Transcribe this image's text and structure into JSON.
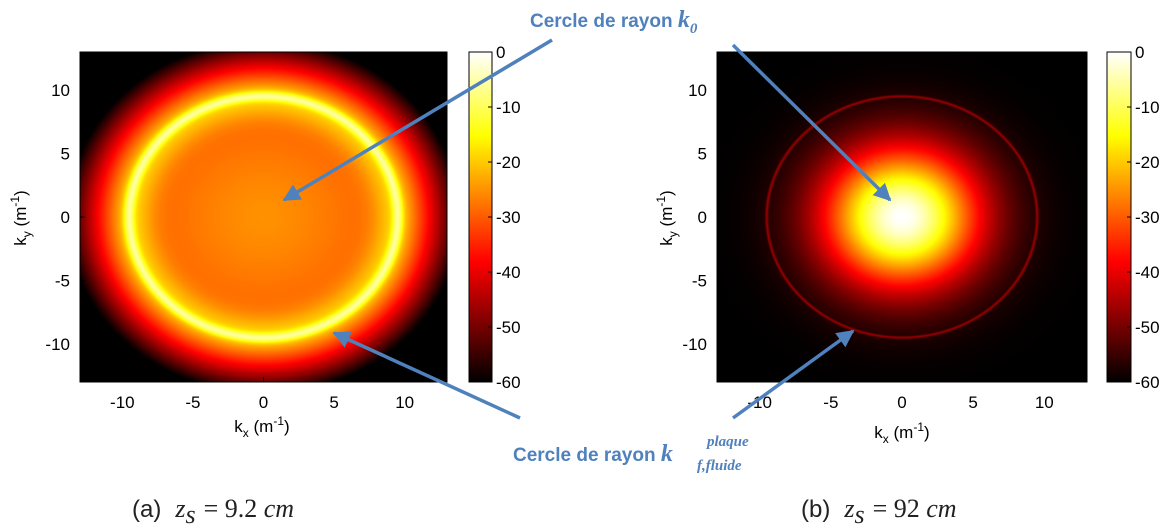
{
  "annotations": {
    "top": {
      "text": "Cercle de rayon ",
      "symbol": "k",
      "subscript": "0"
    },
    "bottom": {
      "text": "Cercle de rayon ",
      "symbol": "k",
      "superscript": "plaque",
      "subscript": "f,fluide"
    }
  },
  "captions": {
    "a": {
      "label": "(a)",
      "var": "z",
      "sub": "s",
      "value": "= 9.2 ",
      "unit": "cm"
    },
    "b": {
      "label": "(b)",
      "var": "z",
      "sub": "s",
      "value": "= 92 ",
      "unit": "cm"
    }
  },
  "colors": {
    "arrow": "#4f81bd",
    "background": "#ffffff"
  },
  "chart_data": [
    {
      "type": "heatmap",
      "panel": "a",
      "xlabel": {
        "base": "k",
        "sub": "x",
        "unit": " (m",
        "exp": "-1",
        "close": ")"
      },
      "ylabel": {
        "base": "k",
        "sub": "y",
        "unit": " (m",
        "exp": "-1",
        "close": ")"
      },
      "xlim": [
        -13,
        13
      ],
      "ylim": [
        -13,
        13
      ],
      "xticks": [
        -10,
        -5,
        0,
        5,
        10
      ],
      "yticks": [
        10,
        5,
        0,
        -5,
        -10
      ],
      "colorbar": {
        "ticks": [
          0,
          -10,
          -20,
          -30,
          -40,
          -50,
          -60
        ],
        "range": [
          -60,
          0
        ],
        "colormap": "hot"
      },
      "field": {
        "ring_radius": 9.5,
        "ring_level_db": -6,
        "center_level_db": -25,
        "ring_width": 0.25,
        "wide_width": 5.0,
        "outside_decay": 3.0
      }
    },
    {
      "type": "heatmap",
      "panel": "b",
      "xlabel": {
        "base": "k",
        "sub": "x",
        "unit": " (m",
        "exp": "-1",
        "close": ")"
      },
      "ylabel": {
        "base": "k",
        "sub": "y",
        "unit": " (m",
        "exp": "-1",
        "close": ")"
      },
      "xlim": [
        -13,
        13
      ],
      "ylim": [
        -13,
        13
      ],
      "xticks": [
        -10,
        -5,
        0,
        5,
        10
      ],
      "yticks": [
        10,
        5,
        0,
        -5,
        -10
      ],
      "colorbar": {
        "ticks": [
          0,
          -10,
          -20,
          -30,
          -40,
          -50,
          -60
        ],
        "range": [
          -60,
          0
        ],
        "colormap": "hot"
      },
      "field": {
        "center_level_db": 0,
        "gaussian_sigma": 2.6,
        "ring_radius": 9.5,
        "ring_level_db": -47,
        "ring_width": 0.09
      }
    }
  ]
}
